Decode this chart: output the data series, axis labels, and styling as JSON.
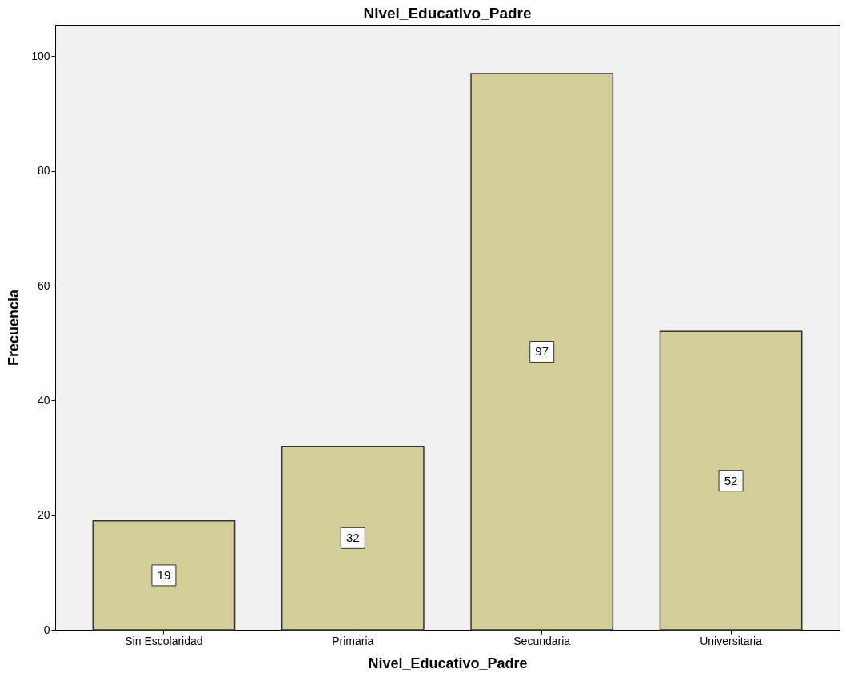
{
  "chart_data": {
    "type": "bar",
    "title": "Nivel_Educativo_Padre",
    "xlabel": "Nivel_Educativo_Padre",
    "ylabel": "Frecuencia",
    "categories": [
      "Sin Escolaridad",
      "Primaria",
      "Secundaria",
      "Universitaria"
    ],
    "values": [
      19,
      32,
      97,
      52
    ],
    "color": "#d3ce98",
    "ylim": [
      0,
      105.5
    ],
    "yticks": [
      0,
      20,
      40,
      60,
      80,
      100
    ],
    "grid": false,
    "data_labels": true
  }
}
